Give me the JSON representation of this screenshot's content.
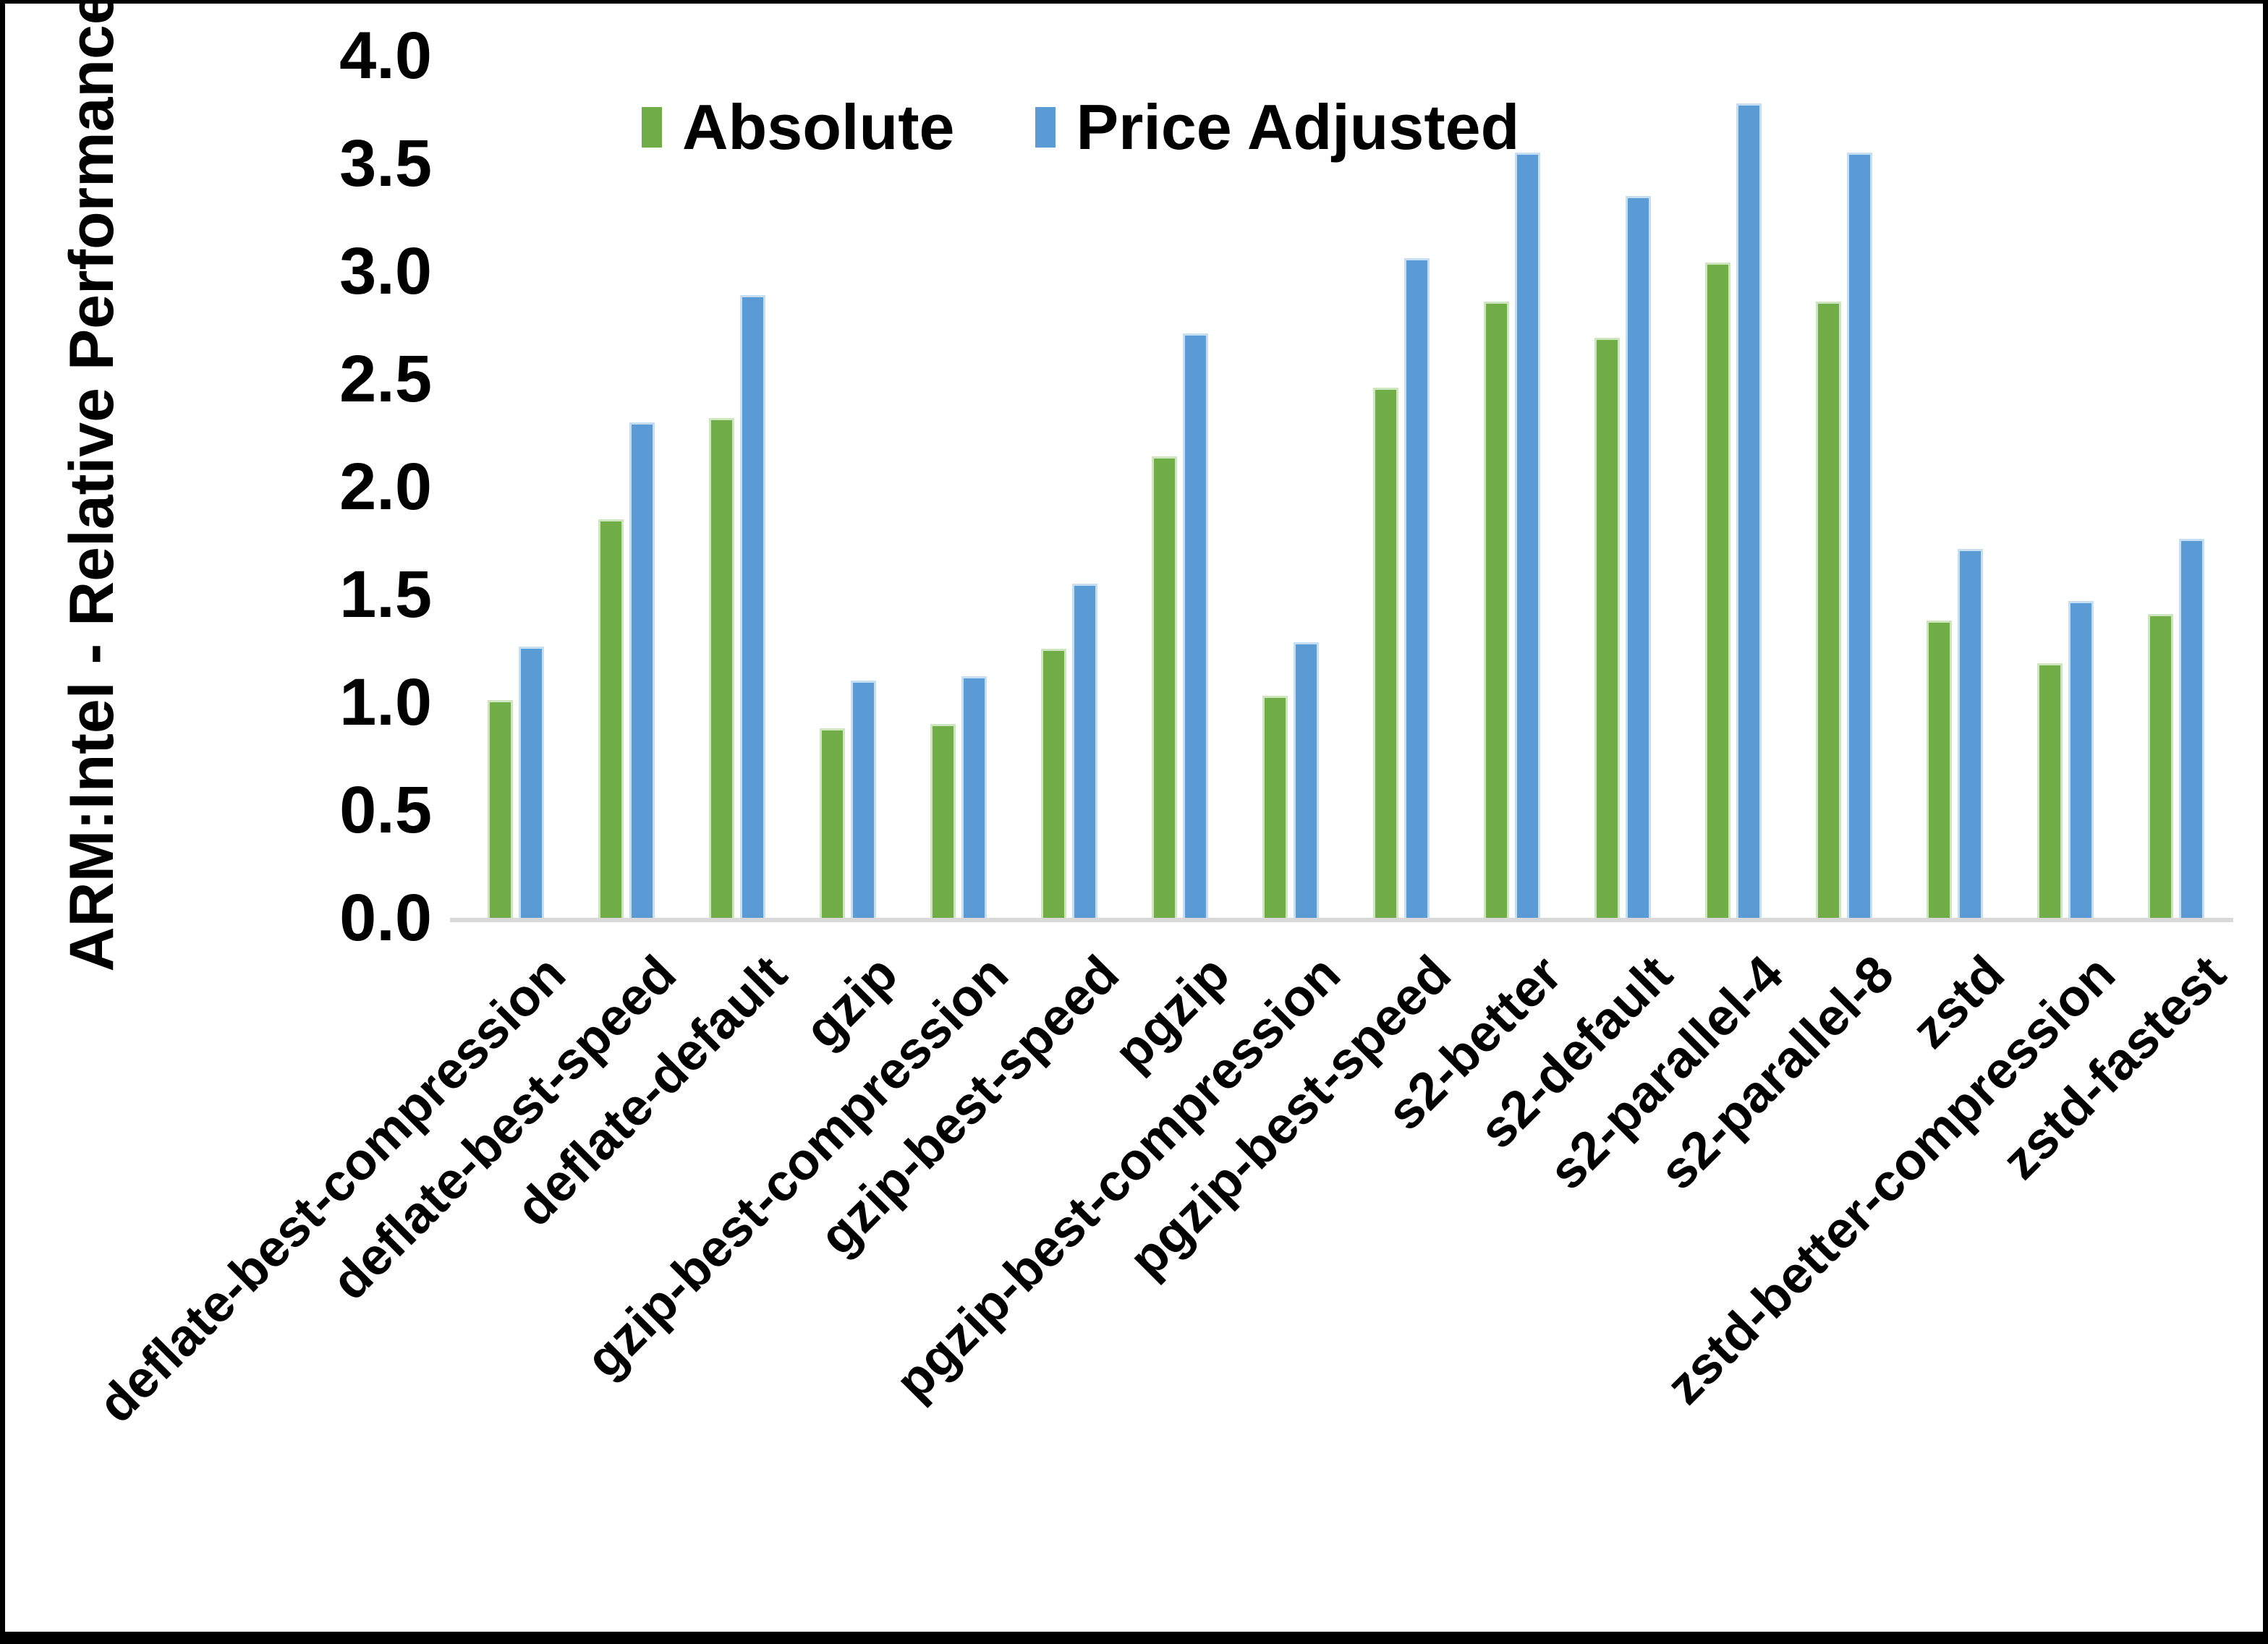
{
  "chart_data": {
    "type": "bar",
    "title": "",
    "xlabel": "",
    "ylabel": "ARM:Intel - Relative Performance",
    "ylim": [
      0.0,
      4.0
    ],
    "ytick_step": 0.5,
    "ytick_labels": [
      "0.0",
      "0.5",
      "1.0",
      "1.5",
      "2.0",
      "2.5",
      "3.0",
      "3.5",
      "4.0"
    ],
    "grid": false,
    "legend_position": "top-center",
    "background_color": "#ffffff",
    "axis_line_color": "#d9d9d9",
    "frame_border_color": "#000000",
    "categories": [
      "deflate-best-compression",
      "deflate-best-speed",
      "deflate-default",
      "gzip",
      "gzip-best-compression",
      "gzip-best-speed",
      "pgzip",
      "pgzip-best-compression",
      "pgzip-best-speed",
      "s2-better",
      "s2-default",
      "s2-parallel-4",
      "s2-parallel-8",
      "zstd",
      "zstd-better-compression",
      "zstd-fastest"
    ],
    "series": [
      {
        "name": "Absolute",
        "color": "#70AD47",
        "edge_color": "#cde6bd",
        "values": [
          1.01,
          1.85,
          2.32,
          0.88,
          0.9,
          1.25,
          2.14,
          1.03,
          2.46,
          2.86,
          2.69,
          3.04,
          2.86,
          1.38,
          1.18,
          1.41
        ]
      },
      {
        "name": "Price Adjusted",
        "color": "#5B9BD5",
        "edge_color": "#c6def2",
        "values": [
          1.26,
          2.3,
          2.89,
          1.1,
          1.12,
          1.55,
          2.71,
          1.28,
          3.06,
          3.55,
          3.35,
          3.78,
          3.55,
          1.71,
          1.47,
          1.76
        ]
      }
    ]
  }
}
